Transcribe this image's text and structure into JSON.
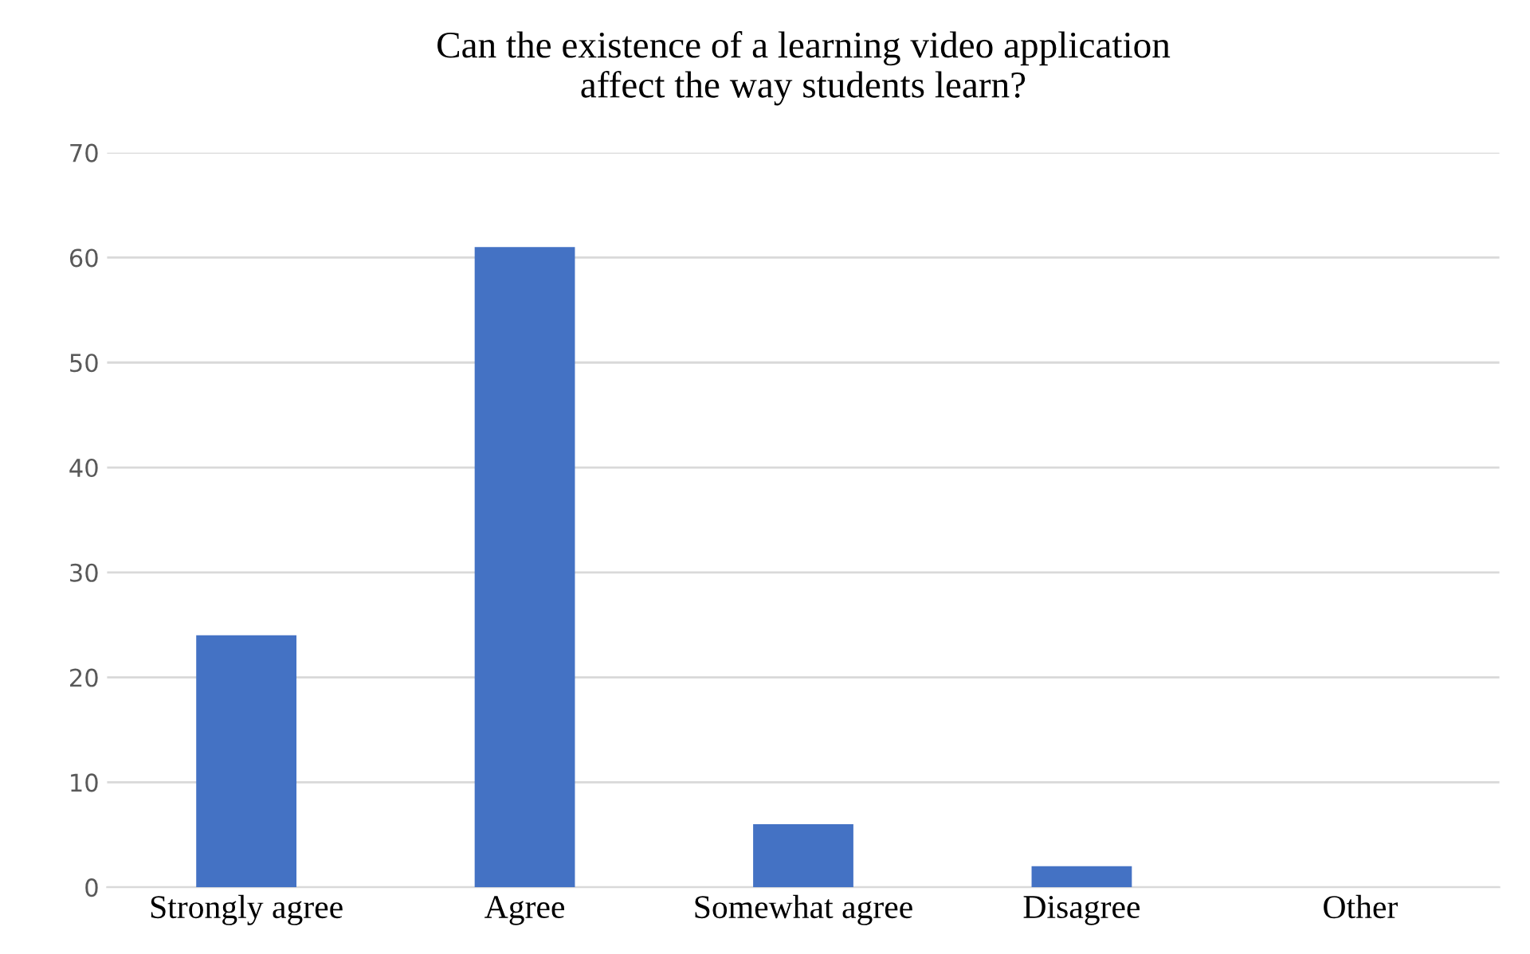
{
  "chart_data": {
    "type": "bar",
    "title": "Can the existence of a learning video application\naffect the way students learn?",
    "categories": [
      "Strongly agree",
      "Agree",
      "Somewhat agree",
      "Disagree",
      "Other"
    ],
    "values": [
      24,
      61,
      6,
      2,
      0
    ],
    "color": "#4472c4",
    "ylim": [
      0,
      70
    ],
    "yticks": [
      0,
      10,
      20,
      30,
      40,
      50,
      60,
      70
    ],
    "grid": "y"
  }
}
